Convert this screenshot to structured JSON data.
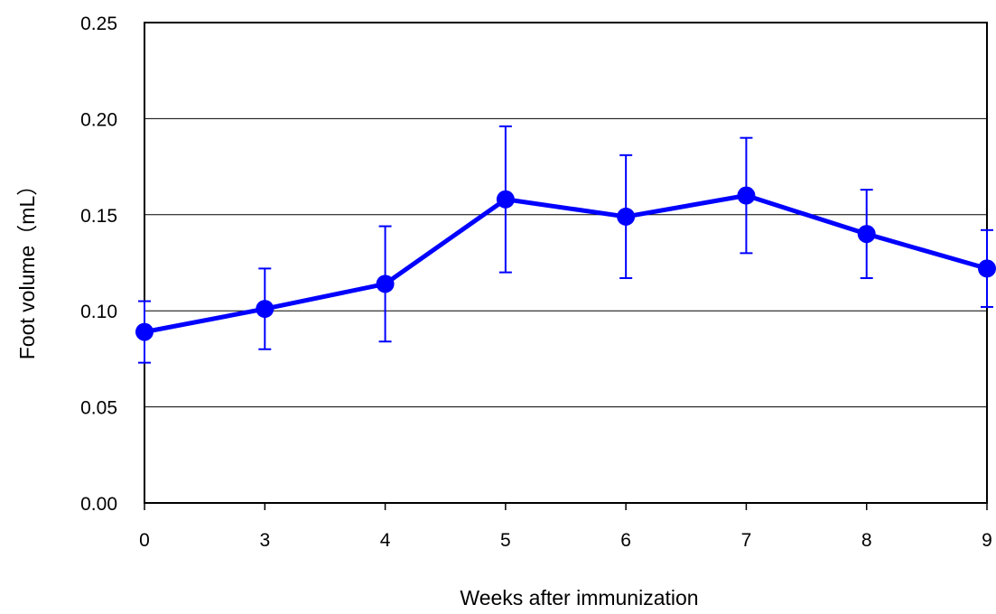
{
  "chart_data": {
    "type": "line",
    "title": "",
    "xlabel": "Weeks after immunization",
    "ylabel": "Foot volume（mL）",
    "categories": [
      "0",
      "3",
      "4",
      "5",
      "6",
      "7",
      "8",
      "9"
    ],
    "series": [
      {
        "values": [
          0.089,
          0.101,
          0.114,
          0.158,
          0.149,
          0.16,
          0.14,
          0.122
        ],
        "error_upper": [
          0.105,
          0.122,
          0.144,
          0.196,
          0.181,
          0.19,
          0.163,
          0.142
        ],
        "error_lower": [
          0.073,
          0.08,
          0.084,
          0.12,
          0.117,
          0.13,
          0.117,
          0.102
        ]
      }
    ],
    "ylim": [
      0,
      0.25
    ],
    "yticks": [
      "0.00",
      "0.05",
      "0.10",
      "0.15",
      "0.20",
      "0.25"
    ],
    "grid": "horizontal",
    "legend": "none",
    "colors": {
      "series": "#0000ff",
      "grid": "#000000",
      "frame": "#000000"
    }
  }
}
